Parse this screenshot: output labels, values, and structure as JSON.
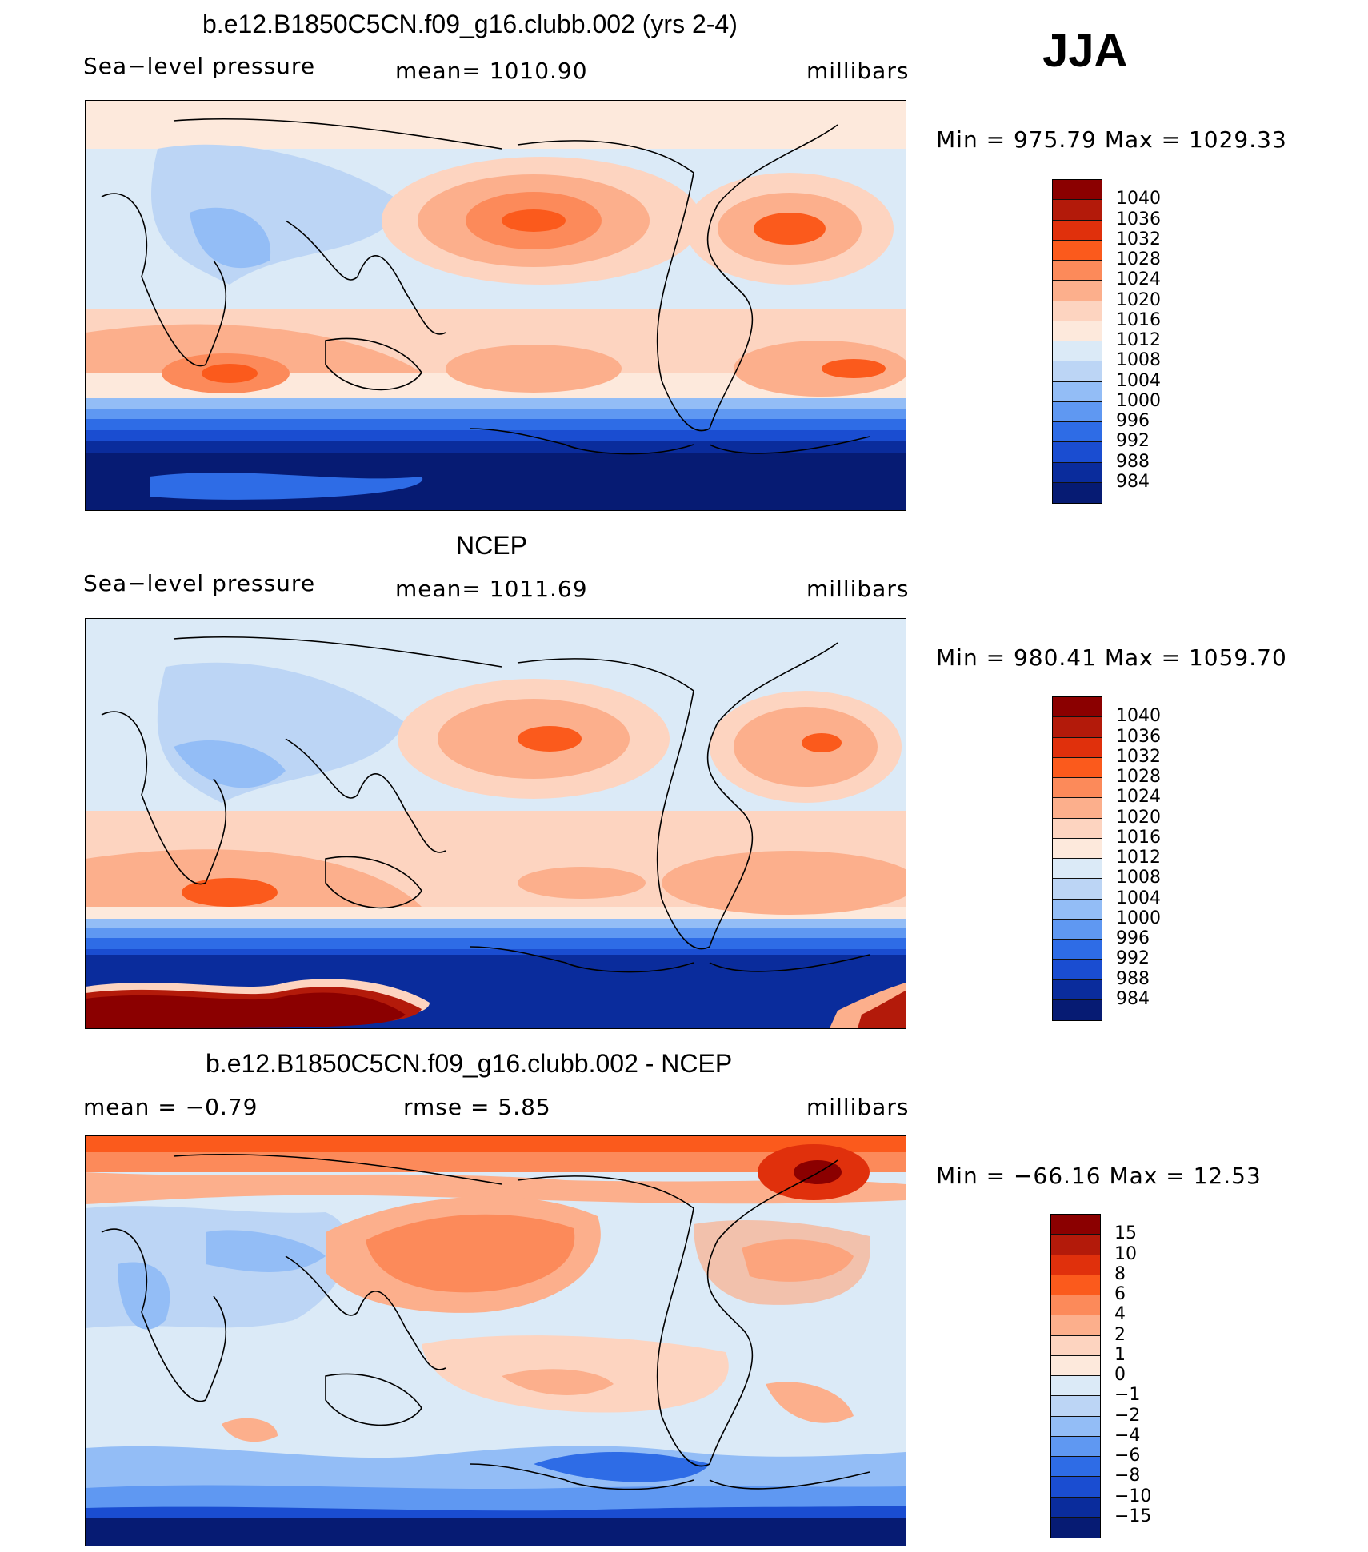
{
  "season": "JJA",
  "panels": [
    {
      "id": "model",
      "title": "b.e12.B1850C5CN.f09_g16.clubb.002 (yrs 2-4)",
      "left_label": "Sea−level pressure",
      "center_label": "mean=  1010.90",
      "units": "millibars",
      "minmax": "Min  =  975.79  Max  =  1029.33",
      "colorbar": {
        "labels": [
          "1040",
          "1036",
          "1032",
          "1028",
          "1024",
          "1020",
          "1016",
          "1012",
          "1008",
          "1004",
          "1000",
          "996",
          "992",
          "988",
          "984"
        ],
        "colors": [
          "#8b0000",
          "#b31a0a",
          "#e0300c",
          "#fb5a1c",
          "#fc8a5a",
          "#fcaf8c",
          "#fdd4c0",
          "#fde9dc",
          "#dbeaf7",
          "#bcd5f5",
          "#93bdf6",
          "#5f98f2",
          "#2e6ce6",
          "#1a4dd1",
          "#0a2c9c",
          "#061b73"
        ]
      }
    },
    {
      "id": "ncep",
      "title": "NCEP",
      "left_label": "Sea−level pressure",
      "center_label": "mean=  1011.69",
      "units": "millibars",
      "minmax": "Min  =  980.41  Max  =  1059.70",
      "colorbar": {
        "labels": [
          "1040",
          "1036",
          "1032",
          "1028",
          "1024",
          "1020",
          "1016",
          "1012",
          "1008",
          "1004",
          "1000",
          "996",
          "992",
          "988",
          "984"
        ],
        "colors": [
          "#8b0000",
          "#b31a0a",
          "#e0300c",
          "#fb5a1c",
          "#fc8a5a",
          "#fcaf8c",
          "#fdd4c0",
          "#fde9dc",
          "#dbeaf7",
          "#bcd5f5",
          "#93bdf6",
          "#5f98f2",
          "#2e6ce6",
          "#1a4dd1",
          "#0a2c9c",
          "#061b73"
        ]
      }
    },
    {
      "id": "diff",
      "title": "b.e12.B1850C5CN.f09_g16.clubb.002 - NCEP",
      "left_label": "mean  =    −0.79",
      "center_label": "rmse  =     5.85",
      "units": "millibars",
      "minmax": "Min  =  −66.16  Max  =    12.53",
      "colorbar": {
        "labels": [
          "15",
          "10",
          "8",
          "6",
          "4",
          "2",
          "1",
          "0",
          "−1",
          "−2",
          "−4",
          "−6",
          "−8",
          "−10",
          "−15"
        ],
        "colors": [
          "#8b0000",
          "#b31a0a",
          "#e0300c",
          "#fb5a1c",
          "#fc8a5a",
          "#fcaf8c",
          "#fdd4c0",
          "#fde9dc",
          "#dbeaf7",
          "#bcd5f5",
          "#93bdf6",
          "#5f98f2",
          "#2e6ce6",
          "#1a4dd1",
          "#0a2c9c",
          "#061b73"
        ]
      }
    }
  ]
}
